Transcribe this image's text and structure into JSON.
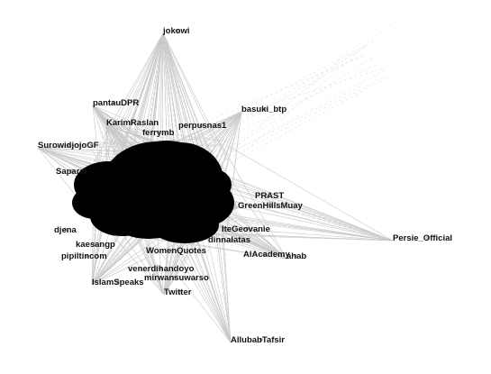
{
  "graph": {
    "edge_color": "#c8c8c8",
    "core_color": "#000000",
    "label_color": "#111111",
    "nodes": [
      {
        "id": "jokowi",
        "label": "jokowi"
      },
      {
        "id": "pantauDPR",
        "label": "pantauDPR"
      },
      {
        "id": "basuki_btp",
        "label": "basuki_btp"
      },
      {
        "id": "KarimRaslan",
        "label": "KarimRaslan"
      },
      {
        "id": "perpusnas1",
        "label": "perpusnas1"
      },
      {
        "id": "ferry",
        "label": "ferrymb"
      },
      {
        "id": "Surowidjojo",
        "label": "SurowidjojoGF"
      },
      {
        "id": "Sapardi",
        "label": "Sapardi"
      },
      {
        "id": "GreenHillsMuay",
        "label": "GreenHillsMuay"
      },
      {
        "id": "PRAST",
        "label": "PRAST"
      },
      {
        "id": "Persie_Official",
        "label": "Persie_Official"
      },
      {
        "id": "dinnalatas",
        "label": "dinnalatas"
      },
      {
        "id": "Geovanie",
        "label": "IteGeovanie"
      },
      {
        "id": "kaesangp",
        "label": "kaesangp"
      },
      {
        "id": "pipiltin",
        "label": "pipiltincom"
      },
      {
        "id": "venerdi",
        "label": "venerdihandoyo"
      },
      {
        "id": "mirwan",
        "label": "mirwansuwarso"
      },
      {
        "id": "IslamSpeaks",
        "label": "IslamSpeaks"
      },
      {
        "id": "Twitter",
        "label": "Twitter"
      },
      {
        "id": "AllubabTafsir",
        "label": "AllubabTafsir"
      },
      {
        "id": "WomenQuotes",
        "label": "WomenQuotes"
      },
      {
        "id": "djena",
        "label": "djena"
      },
      {
        "id": "Academy",
        "label": "AlAcademy"
      },
      {
        "id": "ahab",
        "label": "ahab"
      }
    ]
  }
}
